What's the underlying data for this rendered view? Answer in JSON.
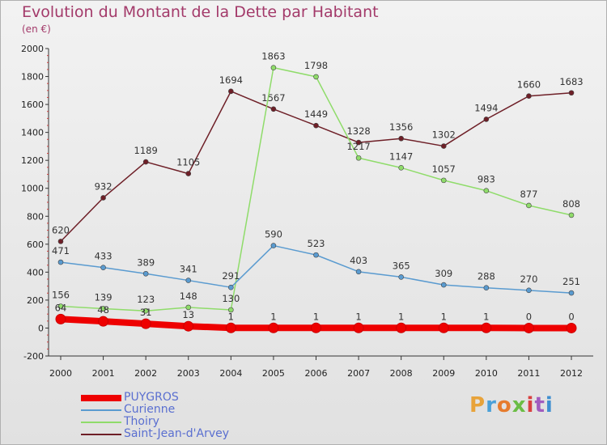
{
  "title": "Evolution du Montant de la Dette par Habitant",
  "subtitle": "(en €)",
  "logo": {
    "text": "Proxiti",
    "colors": [
      "#e8a33a",
      "#4aa0d8",
      "#e67c2e",
      "#6bbd45",
      "#d94040",
      "#a15cbf",
      "#3f8fd0"
    ]
  },
  "chart_data": {
    "type": "line",
    "title": "Evolution du Montant de la Dette par Habitant",
    "subtitle": "(en €)",
    "xlabel": "",
    "ylabel": "",
    "x": [
      2000,
      2001,
      2002,
      2003,
      2004,
      2005,
      2006,
      2007,
      2008,
      2009,
      2010,
      2011,
      2012
    ],
    "ylim": [
      -200,
      2000
    ],
    "yticks": [
      -200,
      0,
      200,
      400,
      600,
      800,
      1000,
      1200,
      1400,
      1600,
      1800,
      2000
    ],
    "grid": false,
    "legend_position": "bottom-left",
    "series": [
      {
        "name": "PUYGROS",
        "color": "#ee0000",
        "values": [
          64,
          48,
          31,
          13,
          1,
          1,
          1,
          1,
          1,
          1,
          1,
          0,
          0
        ]
      },
      {
        "name": "Curienne",
        "color": "#5a9bd0",
        "values": [
          471,
          433,
          389,
          341,
          291,
          590,
          523,
          403,
          365,
          309,
          288,
          270,
          251
        ]
      },
      {
        "name": "Thoiry",
        "color": "#8fdc6a",
        "values": [
          156,
          139,
          123,
          148,
          130,
          1863,
          1798,
          1217,
          1147,
          1057,
          983,
          877,
          808
        ]
      },
      {
        "name": "Saint-Jean-d'Arvey",
        "color": "#6e1f27",
        "values": [
          620,
          932,
          1189,
          1105,
          1694,
          1567,
          1449,
          1328,
          1356,
          1302,
          1494,
          1660,
          1683
        ]
      }
    ]
  }
}
